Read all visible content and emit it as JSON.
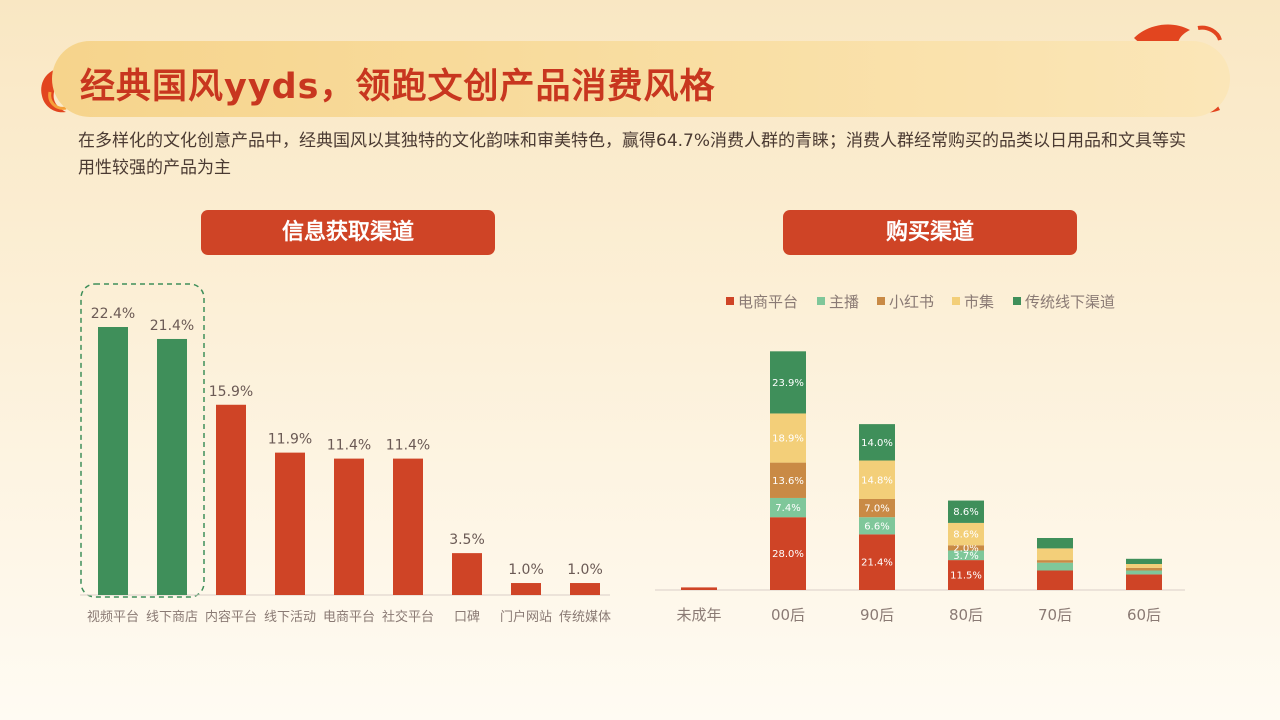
{
  "page": {
    "title": "经典国风yyds，领跑文创产品消费风格",
    "subtitle": "在多样化的文化创意产品中，经典国风以其独特的文化韵味和审美特色，赢得64.7%消费人群的青睐；消费人群经常购买的品类以日用品和文具等实用性较强的产品为主"
  },
  "colors": {
    "accent": "#cf4426",
    "title": "#c8361f",
    "green_highlight": "#3f8f5a",
    "label_text": "#6b5a55"
  },
  "chart_data": [
    {
      "type": "bar",
      "title": "信息获取渠道",
      "categories": [
        "视频平台",
        "线下商店",
        "内容平台",
        "线下活动",
        "电商平台",
        "社交平台",
        "口碑",
        "门户网站",
        "传统媒体"
      ],
      "values": [
        22.4,
        21.4,
        15.9,
        11.9,
        11.4,
        11.4,
        3.5,
        1.0,
        1.0
      ],
      "value_labels": [
        "22.4%",
        "21.4%",
        "15.9%",
        "11.9%",
        "11.4%",
        "11.4%",
        "3.5%",
        "1.0%",
        "1.0%"
      ],
      "highlighted": [
        "视频平台",
        "线下商店"
      ],
      "ylim": [
        0,
        22.4
      ],
      "grid": false,
      "colors": {
        "highlight": "#3f8f5a",
        "default": "#cf4426"
      }
    },
    {
      "type": "bar",
      "stacked": true,
      "title": "购买渠道",
      "categories": [
        "未成年",
        "00后",
        "90后",
        "80后",
        "70后",
        "60后"
      ],
      "legend_position": "top",
      "grid": false,
      "series": [
        {
          "name": "电商平台",
          "color": "#cf4426",
          "values": [
            1.0,
            28.0,
            21.4,
            11.5,
            7.5,
            6.0
          ],
          "labels": [
            "",
            "28.0%",
            "21.4%",
            "11.5%",
            "",
            ""
          ]
        },
        {
          "name": "主播",
          "color": "#7fc79a",
          "values": [
            0,
            7.4,
            6.6,
            3.7,
            3.0,
            1.5
          ],
          "labels": [
            "",
            "7.4%",
            "6.6%",
            "3.7%",
            "",
            ""
          ]
        },
        {
          "name": "小红书",
          "color": "#c98a45",
          "values": [
            0,
            13.6,
            7.0,
            2.0,
            1.0,
            1.0
          ],
          "labels": [
            "",
            "13.6%",
            "7.0%",
            "2.0%",
            "",
            ""
          ]
        },
        {
          "name": "市集",
          "color": "#f3cf79",
          "values": [
            0,
            18.9,
            14.8,
            8.6,
            4.5,
            1.5
          ],
          "labels": [
            "",
            "18.9%",
            "14.8%",
            "8.6%",
            "",
            ""
          ]
        },
        {
          "name": "传统线下渠道",
          "color": "#3f8f5a",
          "values": [
            0,
            23.9,
            14.0,
            8.6,
            4.0,
            2.0
          ],
          "labels": [
            "",
            "23.9%",
            "14.0%",
            "8.6%",
            "",
            ""
          ]
        }
      ]
    }
  ]
}
